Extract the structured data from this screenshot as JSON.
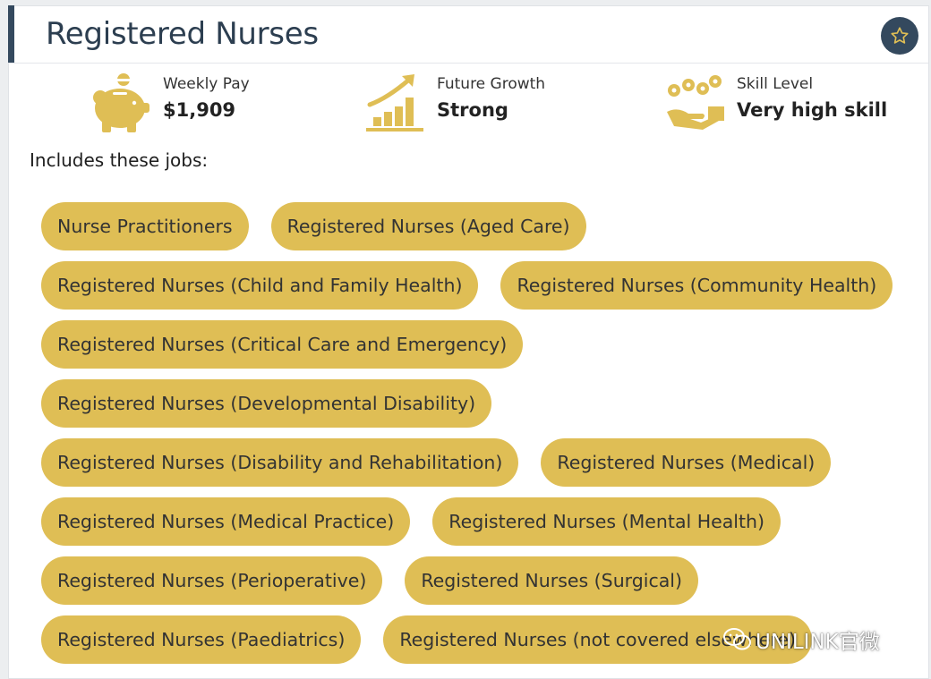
{
  "header": {
    "title": "Registered Nurses",
    "favorite_icon": "star-icon"
  },
  "stats": [
    {
      "icon": "piggy-bank-icon",
      "label": "Weekly Pay",
      "value": "$1,909"
    },
    {
      "icon": "growth-chart-icon",
      "label": "Future Growth",
      "value": "Strong"
    },
    {
      "icon": "gears-hand-icon",
      "label": "Skill Level",
      "value": "Very high skill"
    }
  ],
  "jobs_heading": "Includes these jobs:",
  "jobs": [
    "Nurse Practitioners",
    "Registered Nurses (Aged Care)",
    "Registered Nurses (Child and Family Health)",
    "Registered Nurses (Community Health)",
    "Registered Nurses (Critical Care and Emergency)",
    "Registered Nurses (Developmental Disability)",
    "Registered Nurses (Disability and Rehabilitation)",
    "Registered Nurses (Medical)",
    "Registered Nurses (Medical Practice)",
    "Registered Nurses (Mental Health)",
    "Registered Nurses (Perioperative)",
    "Registered Nurses (Surgical)",
    "Registered Nurses (Paediatrics)",
    "Registered Nurses (not covered elsewhere)"
  ],
  "watermark": {
    "icon": "wechat-icon",
    "text": "UNILINK官微"
  },
  "colors": {
    "accent": "#34495e",
    "chip": "#dfbe55",
    "icon_gold": "#dfbe55"
  }
}
